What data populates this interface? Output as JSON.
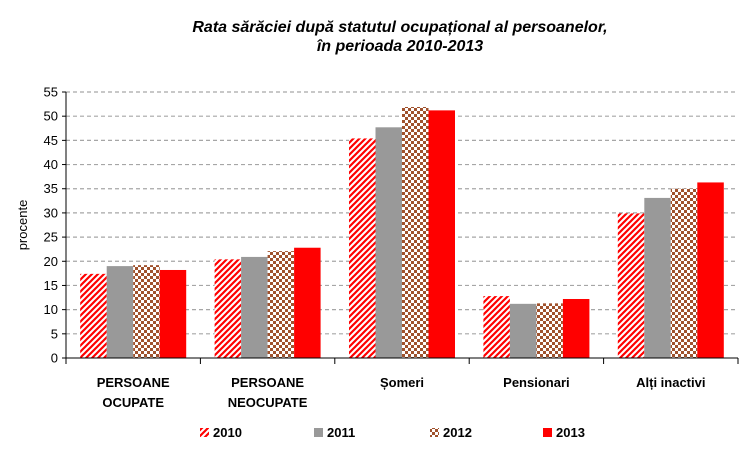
{
  "chart_data": {
    "type": "bar",
    "title": "Rata sărăciei după statutul ocupațional al persoanelor,",
    "subtitle": "în perioada 2010-2013",
    "ylabel": "procente",
    "xlabel": "",
    "ylim": [
      0,
      55
    ],
    "yticks": [
      0,
      5,
      10,
      15,
      20,
      25,
      30,
      35,
      40,
      45,
      50,
      55
    ],
    "grid": true,
    "legend_position": "bottom",
    "categories": [
      [
        "PERSOANE",
        "OCUPATE"
      ],
      [
        "PERSOANE",
        "NEOCUPATE"
      ],
      [
        "Șomeri"
      ],
      [
        "Pensionari"
      ],
      [
        "Alți inactivi"
      ]
    ],
    "series": [
      {
        "name": "2010",
        "color": "#ff0000",
        "pattern": "diagonal-stripes",
        "values": [
          17.4,
          20.4,
          45.4,
          12.8,
          29.9
        ]
      },
      {
        "name": "2011",
        "color": "#999999",
        "pattern": "solid",
        "values": [
          19.0,
          20.9,
          47.7,
          11.2,
          33.1
        ]
      },
      {
        "name": "2012",
        "color": "#a0522d",
        "pattern": "dots",
        "values": [
          19.2,
          22.1,
          51.9,
          11.3,
          35.0
        ]
      },
      {
        "name": "2013",
        "color": "#ff0000",
        "pattern": "solid",
        "values": [
          18.2,
          22.8,
          51.2,
          12.2,
          36.3
        ]
      }
    ]
  }
}
